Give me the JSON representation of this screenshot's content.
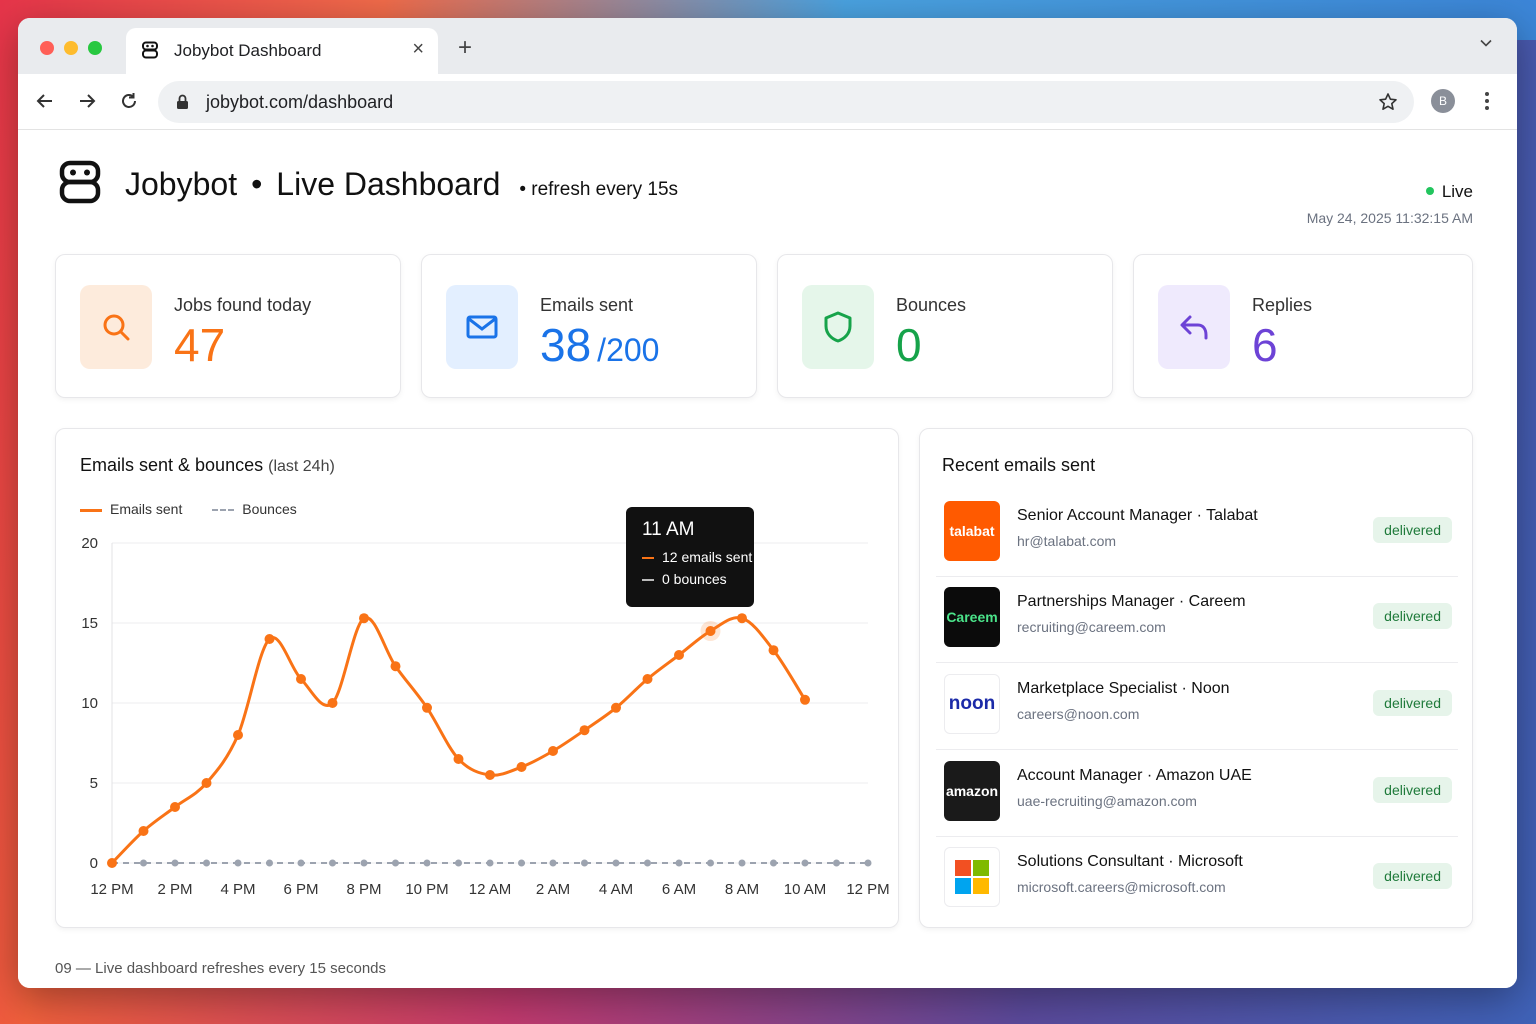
{
  "browser": {
    "tab_title": "Jobybot Dashboard",
    "close_glyph": "×",
    "newtab_glyph": "+",
    "url": "jobybot.com/dashboard",
    "profile_initial": "B"
  },
  "header": {
    "brand": "Jobybot",
    "separator": "•",
    "title": "Live Dashboard",
    "refresh": "refresh every 15s",
    "status": "Live",
    "timestamp": "May 24, 2025 11:32:15 AM"
  },
  "stats": [
    {
      "label": "Jobs found today",
      "value": "47",
      "color": "#f97316",
      "bg": "#fdebdc",
      "icon": "search-icon"
    },
    {
      "label": "Emails sent",
      "value": "38",
      "sub": "/200",
      "color": "#1a73e8",
      "bg": "#e3efff",
      "icon": "mail-icon"
    },
    {
      "label": "Bounces",
      "value": "0",
      "color": "#16a34a",
      "bg": "#e5f6ea",
      "icon": "shield-icon"
    },
    {
      "label": "Replies",
      "value": "6",
      "color": "#6d43d6",
      "bg": "#efeafd",
      "icon": "reply-icon"
    }
  ],
  "chart": {
    "title": "Emails sent & bounces",
    "title_suffix": "(last 24h)",
    "legend": [
      "Emails sent",
      "Bounces"
    ],
    "tooltip": {
      "title": "11 AM",
      "emails": "12 emails sent",
      "bounces": "0 bounces"
    }
  },
  "chart_data": {
    "type": "line",
    "title": "Emails sent & bounces (last 24h)",
    "xlabel": "",
    "ylabel": "",
    "ylim": [
      0,
      20
    ],
    "yticks": [
      0,
      5,
      10,
      15,
      20
    ],
    "x_tick_labels": [
      "12 PM",
      "2 PM",
      "4 PM",
      "6 PM",
      "8 PM",
      "10 PM",
      "12 AM",
      "2 AM",
      "4 AM",
      "6 AM",
      "8 AM",
      "10 AM",
      "12 PM"
    ],
    "x": [
      0,
      1,
      2,
      3,
      4,
      5,
      6,
      7,
      8,
      9,
      10,
      11,
      12,
      13,
      14,
      15,
      16,
      17,
      18,
      19,
      20,
      21,
      22,
      23,
      24
    ],
    "series": [
      {
        "name": "Emails sent",
        "color": "#f97316",
        "style": "solid",
        "values": [
          0,
          2,
          3.5,
          5,
          8,
          14,
          11.5,
          10,
          15.3,
          12.3,
          9.7,
          6.5,
          5.5,
          6,
          7,
          8.3,
          9.7,
          11.5,
          13,
          14.5,
          15.3,
          13.3,
          10.2,
          null,
          null
        ]
      },
      {
        "name": "Bounces",
        "color": "#9ca3af",
        "style": "dashed",
        "values": [
          0,
          0,
          0,
          0,
          0,
          0,
          0,
          0,
          0,
          0,
          0,
          0,
          0,
          0,
          0,
          0,
          0,
          0,
          0,
          0,
          0,
          0,
          0,
          0,
          0
        ]
      }
    ],
    "grid": true,
    "legend_position": "top-left"
  },
  "recent": {
    "title": "Recent emails sent",
    "items": [
      {
        "logo": "talabat",
        "logo_bg": "#ff5a00",
        "logo_fg": "#ffffff",
        "role": "Senior Account Manager · Talabat",
        "email": "hr@talabat.com",
        "status": "delivered"
      },
      {
        "logo": "Careem",
        "logo_bg": "#0b0b0b",
        "logo_fg": "#4be38a",
        "role": "Partnerships Manager · Careem",
        "email": "recruiting@careem.com",
        "status": "delivered"
      },
      {
        "logo": "noon",
        "logo_bg": "#ffffff",
        "logo_fg": "#1b2aa8",
        "role": "Marketplace Specialist · Noon",
        "email": "careers@noon.com",
        "status": "delivered"
      },
      {
        "logo": "amazon",
        "logo_bg": "#1a1a1a",
        "logo_fg": "#ffffff",
        "role": "Account Manager · Amazon UAE",
        "email": "uae-recruiting@amazon.com",
        "status": "delivered"
      },
      {
        "logo": "microsoft",
        "logo_bg": "#ffffff",
        "logo_fg": "#111111",
        "role": "Solutions Consultant · Microsoft",
        "email": "microsoft.careers@microsoft.com",
        "status": "delivered"
      }
    ]
  },
  "footer": "09 — Live dashboard refreshes every 15 seconds"
}
